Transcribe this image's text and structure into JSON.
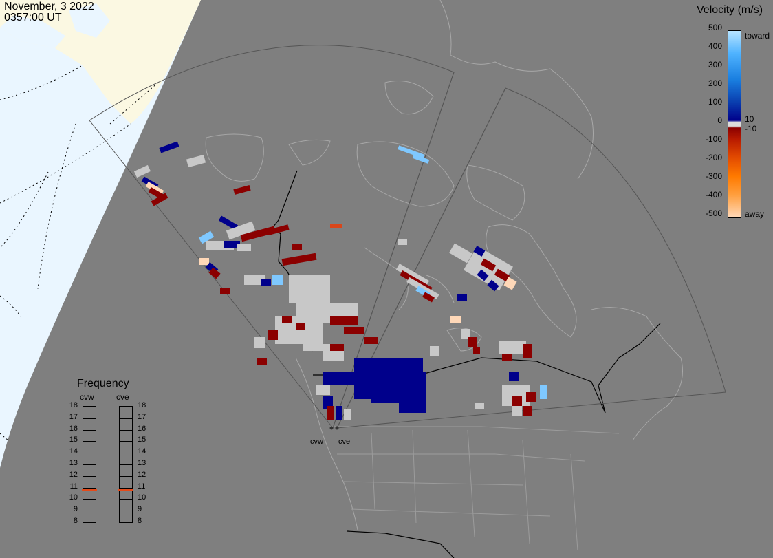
{
  "header": {
    "date": "November, 3 2022",
    "time": "0357:00 UT"
  },
  "velocity_scale": {
    "title": "Velocity (m/s)",
    "ticks": [
      "500",
      "400",
      "300",
      "200",
      "100",
      "0",
      "-100",
      "-200",
      "-300",
      "-400",
      "-500"
    ],
    "extra_ticks": [
      "10",
      "-10"
    ],
    "top_label": "toward",
    "bottom_label": "away",
    "colors": [
      "#ffd8b8",
      "#ff9f3f",
      "#ff7a00",
      "#e34b00",
      "#b81a00",
      "#8b0000",
      "#dcdcdc",
      "#00008b",
      "#0a3fb0",
      "#1a7fe0",
      "#4fb3ff",
      "#b8e4ff"
    ]
  },
  "frequency_panel": {
    "title": "Frequency",
    "radars": [
      "cvw",
      "cve"
    ],
    "levels": [
      "18",
      "17",
      "16",
      "15",
      "14",
      "13",
      "12",
      "11",
      "10",
      "9",
      "8"
    ],
    "active_frequency": [
      10.8,
      10.8
    ],
    "marker_color": "#e34b1a"
  },
  "sites": [
    "cvw",
    "cve"
  ],
  "colors": {
    "background": "#7f7f7f",
    "land_outline": "#a8a8a8",
    "border": "#000000",
    "ocean": "#eaf6ff",
    "night_terminator": "#fdfbe6",
    "ground_scatter": "#c8c8c8"
  }
}
